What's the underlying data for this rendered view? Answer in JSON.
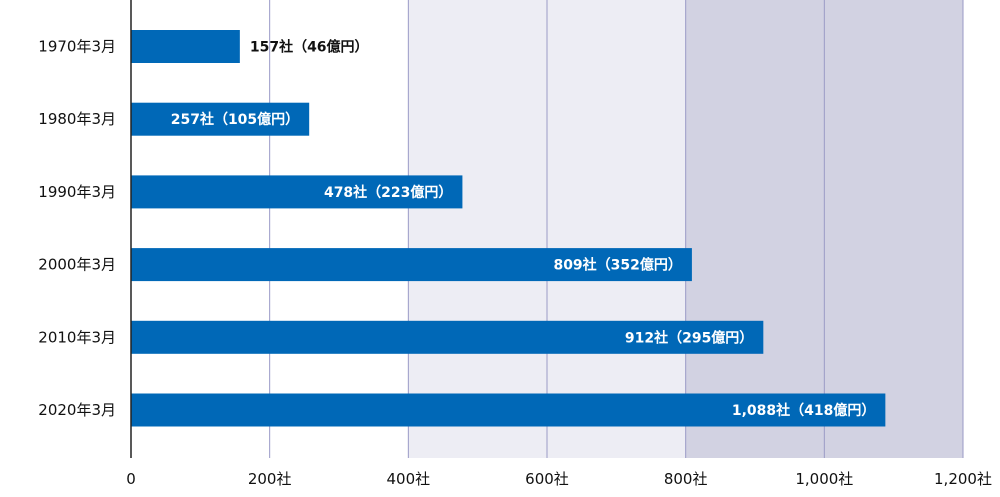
{
  "chart_data": {
    "type": "bar",
    "orientation": "horizontal",
    "categories": [
      "1970年3月",
      "1980年3月",
      "1990年3月",
      "2000年3月",
      "2010年3月",
      "2020年3月"
    ],
    "values": [
      157,
      257,
      478,
      809,
      912,
      1088
    ],
    "data_labels": [
      "157社（46億円）",
      "257社（105億円）",
      "478社（223億円）",
      "809社（352億円）",
      "912社（295億円）",
      "1,088社（418億円）"
    ],
    "xlim": [
      0,
      1200
    ],
    "x_ticks": [
      0,
      200,
      400,
      600,
      800,
      1000,
      1200
    ],
    "x_tick_labels": [
      "0",
      "200社",
      "400社",
      "600社",
      "800社",
      "1,000社",
      "1,200社"
    ],
    "grid": true,
    "bar_color": "#0068b7",
    "background_bands": [
      {
        "from": 400,
        "to": 800,
        "color": "#ededf4"
      },
      {
        "from": 800,
        "to": 1200,
        "color": "#d2d2e2"
      }
    ]
  }
}
